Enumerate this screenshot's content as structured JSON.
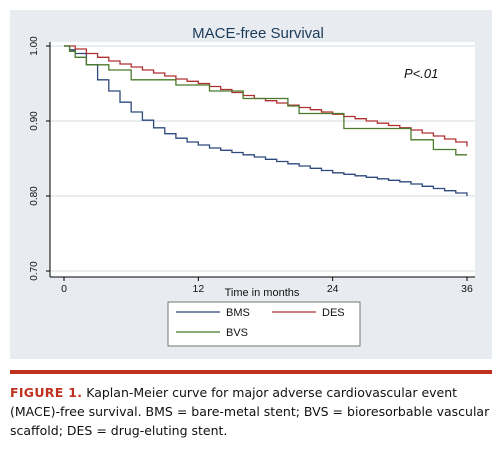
{
  "chart_data": {
    "type": "line",
    "title": "MACE-free Survival",
    "xlabel": "Time in months",
    "ylabel": "",
    "xlim": [
      0,
      36
    ],
    "ylim": [
      0.7,
      1.0
    ],
    "x_ticks": [
      0,
      12,
      24,
      36
    ],
    "x_tick_labels": [
      "0",
      "12",
      "24",
      "36"
    ],
    "y_ticks": [
      0.7,
      0.8,
      0.9,
      1.0
    ],
    "y_tick_labels": [
      "0.70",
      "0.80",
      "0.90",
      "1.00"
    ],
    "grid": "horizontal",
    "legend_position": "bottom",
    "annotation": "P<.01",
    "series": [
      {
        "name": "BMS",
        "color": "#2c4a7c",
        "x": [
          0,
          0.5,
          1,
          2,
          3,
          4,
          5,
          6,
          7,
          8,
          9,
          10,
          11,
          12,
          13,
          14,
          15,
          16,
          17,
          18,
          19,
          20,
          21,
          22,
          23,
          24,
          25,
          26,
          27,
          28,
          29,
          30,
          31,
          32,
          33,
          34,
          35,
          36
        ],
        "y": [
          1.0,
          0.995,
          0.99,
          0.975,
          0.955,
          0.94,
          0.925,
          0.912,
          0.901,
          0.891,
          0.883,
          0.877,
          0.872,
          0.868,
          0.864,
          0.861,
          0.858,
          0.855,
          0.852,
          0.849,
          0.846,
          0.843,
          0.84,
          0.837,
          0.834,
          0.831,
          0.829,
          0.827,
          0.825,
          0.823,
          0.821,
          0.819,
          0.816,
          0.813,
          0.81,
          0.807,
          0.804,
          0.8
        ]
      },
      {
        "name": "DES",
        "color": "#b03030",
        "x": [
          0,
          1,
          2,
          3,
          4,
          5,
          6,
          7,
          8,
          9,
          10,
          11,
          12,
          13,
          14,
          15,
          16,
          17,
          18,
          19,
          20,
          21,
          22,
          23,
          24,
          25,
          26,
          27,
          28,
          29,
          30,
          31,
          32,
          33,
          34,
          35,
          36
        ],
        "y": [
          1.0,
          0.996,
          0.99,
          0.985,
          0.98,
          0.976,
          0.972,
          0.968,
          0.964,
          0.96,
          0.956,
          0.953,
          0.95,
          0.946,
          0.942,
          0.938,
          0.934,
          0.93,
          0.927,
          0.924,
          0.921,
          0.918,
          0.915,
          0.912,
          0.909,
          0.906,
          0.903,
          0.9,
          0.897,
          0.894,
          0.891,
          0.888,
          0.884,
          0.88,
          0.876,
          0.872,
          0.866
        ]
      },
      {
        "name": "BVS",
        "color": "#4a7a2a",
        "x": [
          0,
          0.5,
          1,
          2,
          3,
          4,
          5,
          6,
          9,
          10,
          12,
          13,
          15,
          16,
          18,
          20,
          21,
          24,
          25,
          27,
          28,
          30,
          31,
          32,
          33,
          34,
          35,
          36
        ],
        "y": [
          1.0,
          0.993,
          0.985,
          0.975,
          0.975,
          0.968,
          0.968,
          0.955,
          0.955,
          0.948,
          0.948,
          0.94,
          0.94,
          0.93,
          0.93,
          0.92,
          0.91,
          0.91,
          0.89,
          0.89,
          0.89,
          0.89,
          0.875,
          0.875,
          0.862,
          0.862,
          0.855,
          0.855
        ]
      }
    ]
  },
  "caption": {
    "label": "FIGURE 1.",
    "text": " Kaplan-Meier curve for major adverse cardiovascular event (MACE)-free survival. BMS = bare-metal stent; BVS = bioresorbable vascular scaffold; DES = drug-eluting stent."
  }
}
